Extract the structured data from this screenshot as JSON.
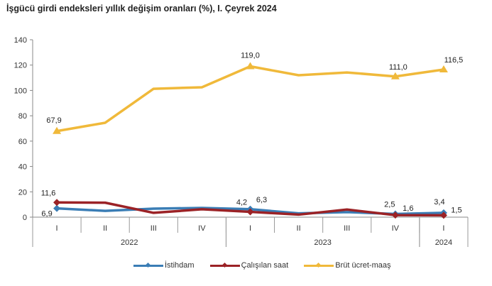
{
  "title": "İşgücü girdi endeksleri yıllık değişim oranları (%), I. Çeyrek 2024",
  "chart_data": {
    "type": "line",
    "title": "İşgücü girdi endeksleri yıllık değişim oranları (%), I. Çeyrek 2024",
    "xlabel": "",
    "ylabel": "",
    "ylim": [
      0,
      140
    ],
    "yticks": [
      0,
      20,
      40,
      60,
      80,
      100,
      120,
      140
    ],
    "grid": false,
    "legend_position": "bottom",
    "categories": [
      "I",
      "II",
      "III",
      "IV",
      "I",
      "II",
      "III",
      "IV",
      "I"
    ],
    "year_groups": [
      {
        "label": "2022",
        "span": 4
      },
      {
        "label": "2023",
        "span": 4
      },
      {
        "label": "2024",
        "span": 1
      }
    ],
    "series": [
      {
        "name": "İstihdam",
        "color": "#3a7db5",
        "marker": "diamond",
        "values": [
          6.9,
          5.0,
          6.7,
          7.3,
          6.3,
          3.0,
          4.0,
          2.5,
          3.4
        ],
        "labels": [
          "6,9",
          "",
          "",
          "",
          "6,3",
          "",
          "",
          "2,5",
          "3,4"
        ]
      },
      {
        "name": "Çalışılan saat",
        "color": "#9b2226",
        "marker": "diamond",
        "values": [
          11.6,
          11.4,
          3.4,
          6.2,
          4.2,
          2.0,
          6.0,
          1.6,
          1.5
        ],
        "labels": [
          "11,6",
          "",
          "",
          "",
          "4,2",
          "",
          "",
          "1,6",
          "1,5"
        ]
      },
      {
        "name": "Brüt ücret-maaş",
        "color": "#f0b93a",
        "marker": "triangle",
        "values": [
          67.9,
          74.5,
          101.3,
          102.5,
          119.0,
          112.0,
          114.2,
          111.0,
          116.5
        ],
        "labels": [
          "67,9",
          "",
          "",
          "",
          "119,0",
          "",
          "",
          "111,0",
          "116,5"
        ]
      }
    ]
  },
  "legend": {
    "items": [
      {
        "label": "İstihdam",
        "color": "#3a7db5"
      },
      {
        "label": "Çalışılan saat",
        "color": "#9b2226"
      },
      {
        "label": "Brüt ücret-maaş",
        "color": "#f0b93a"
      }
    ]
  }
}
